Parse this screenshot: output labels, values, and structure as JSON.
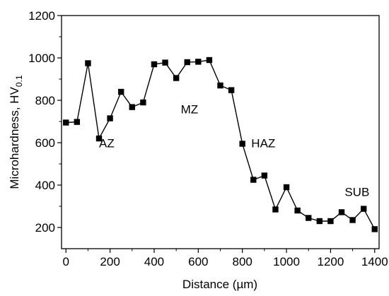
{
  "chart_data": {
    "type": "line",
    "xlabel": "Distance (µm)",
    "ylabel_main": "Microhardness, HV",
    "ylabel_subscript": "0.1",
    "xlim": [
      -20,
      1420
    ],
    "ylim": [
      100,
      1200
    ],
    "xticks": [
      0,
      200,
      400,
      600,
      800,
      1000,
      1200,
      1400
    ],
    "yticks": [
      200,
      400,
      600,
      800,
      1000,
      1200
    ],
    "xminor_ticks": [
      100,
      300,
      500,
      700,
      900,
      1100,
      1300
    ],
    "yminor_ticks": [
      300,
      500,
      700,
      900,
      1100
    ],
    "grid": false,
    "legend": "none",
    "series": [
      {
        "marker": "square",
        "color": "#000000",
        "x": [
          0,
          50,
          100,
          150,
          200,
          250,
          300,
          350,
          400,
          450,
          500,
          550,
          600,
          650,
          700,
          750,
          800,
          850,
          900,
          950,
          1000,
          1050,
          1100,
          1150,
          1200,
          1250,
          1300,
          1350,
          1400
        ],
        "y": [
          695,
          698,
          975,
          620,
          715,
          840,
          768,
          790,
          970,
          978,
          905,
          980,
          982,
          990,
          870,
          848,
          595,
          425,
          445,
          285,
          390,
          280,
          245,
          230,
          230,
          272,
          235,
          288,
          192
        ]
      }
    ],
    "annotations": [
      {
        "text": "AZ",
        "x": 185,
        "y": 578
      },
      {
        "text": "MZ",
        "x": 560,
        "y": 738
      },
      {
        "text": "HAZ",
        "x": 895,
        "y": 578
      },
      {
        "text": "SUB",
        "x": 1320,
        "y": 348
      }
    ]
  }
}
